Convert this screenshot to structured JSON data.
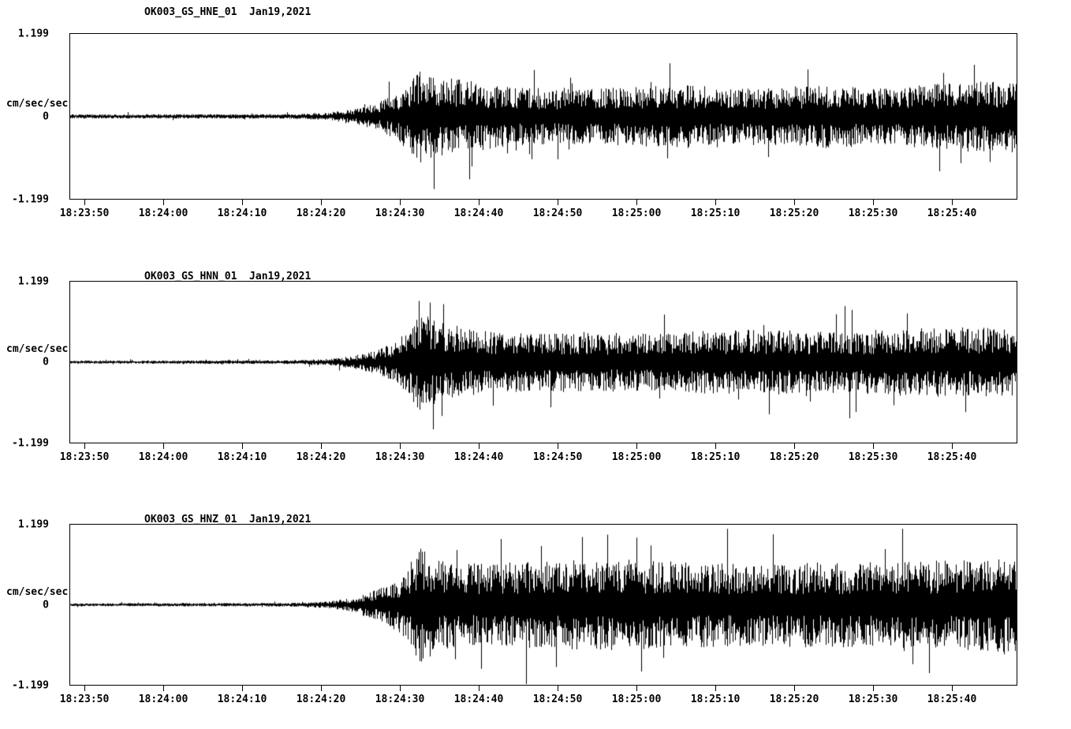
{
  "figure": {
    "background_color": "#ffffff",
    "trace_color": "#000000",
    "kind": "three-channel seismic accelerogram strip plot"
  },
  "chart_data": [
    {
      "type": "line",
      "title": "OK003_GS_HNE_01  Jan19,2021",
      "ylabel": "cm/sec/sec",
      "yticks": [
        "1.199",
        "0",
        "-1.199"
      ],
      "ylim": [
        -1.199,
        1.199
      ],
      "x_tick_labels": [
        "18:23:50",
        "18:24:00",
        "18:24:10",
        "18:24:20",
        "18:24:30",
        "18:24:40",
        "18:24:50",
        "18:25:00",
        "18:25:10",
        "18:25:20",
        "18:25:30",
        "18:25:40"
      ],
      "x_tick_interval_sec": 10,
      "x_start_time": "18:23:48",
      "duration_sec": 120.2,
      "grid": false,
      "legend": "none",
      "envelope": {
        "t_sec": [
          0,
          28,
          33,
          36,
          39,
          41,
          43,
          44.5,
          46,
          48,
          52,
          56,
          62,
          70,
          78,
          84,
          90,
          96,
          102,
          108,
          114,
          120.2
        ],
        "amp": [
          0.03,
          0.035,
          0.06,
          0.11,
          0.2,
          0.33,
          0.52,
          0.7,
          0.62,
          0.56,
          0.5,
          0.43,
          0.4,
          0.43,
          0.46,
          0.42,
          0.44,
          0.47,
          0.43,
          0.46,
          0.52,
          0.5
        ]
      }
    },
    {
      "type": "line",
      "title": "OK003_GS_HNN_01  Jan19,2021",
      "ylabel": "cm/sec/sec",
      "yticks": [
        "1.199",
        "0",
        "-1.199"
      ],
      "ylim": [
        -1.199,
        1.199
      ],
      "x_tick_labels": [
        "18:23:50",
        "18:24:00",
        "18:24:10",
        "18:24:20",
        "18:24:30",
        "18:24:40",
        "18:24:50",
        "18:25:00",
        "18:25:10",
        "18:25:20",
        "18:25:30",
        "18:25:40"
      ],
      "x_tick_interval_sec": 10,
      "x_start_time": "18:23:48",
      "duration_sec": 120.2,
      "grid": false,
      "legend": "none",
      "envelope": {
        "t_sec": [
          0,
          28,
          33,
          36,
          39,
          41,
          43,
          44.5,
          46,
          49,
          53,
          58,
          64,
          72,
          80,
          88,
          96,
          104,
          112,
          120.2
        ],
        "amp": [
          0.022,
          0.028,
          0.05,
          0.1,
          0.18,
          0.3,
          0.52,
          0.8,
          0.65,
          0.52,
          0.47,
          0.44,
          0.46,
          0.43,
          0.47,
          0.5,
          0.46,
          0.5,
          0.53,
          0.5
        ]
      }
    },
    {
      "type": "line",
      "title": "OK003_GS_HNZ_01  Jan19,2021",
      "ylabel": "cm/sec/sec",
      "yticks": [
        "1.199",
        "0",
        "-1.199"
      ],
      "ylim": [
        -1.199,
        1.199
      ],
      "x_tick_labels": [
        "18:23:50",
        "18:24:00",
        "18:24:10",
        "18:24:20",
        "18:24:30",
        "18:24:40",
        "18:24:50",
        "18:25:00",
        "18:25:10",
        "18:25:20",
        "18:25:30",
        "18:25:40"
      ],
      "x_tick_interval_sec": 10,
      "x_start_time": "18:23:48",
      "duration_sec": 120.2,
      "grid": false,
      "legend": "none",
      "envelope": {
        "t_sec": [
          0,
          28,
          33,
          36,
          39,
          42,
          44.5,
          47,
          50,
          54,
          60,
          68,
          76,
          84,
          92,
          100,
          108,
          116,
          120.2
        ],
        "amp": [
          0.022,
          0.028,
          0.055,
          0.12,
          0.25,
          0.45,
          0.9,
          0.68,
          0.62,
          0.64,
          0.66,
          0.7,
          0.66,
          0.63,
          0.65,
          0.64,
          0.66,
          0.7,
          0.72
        ]
      }
    }
  ]
}
